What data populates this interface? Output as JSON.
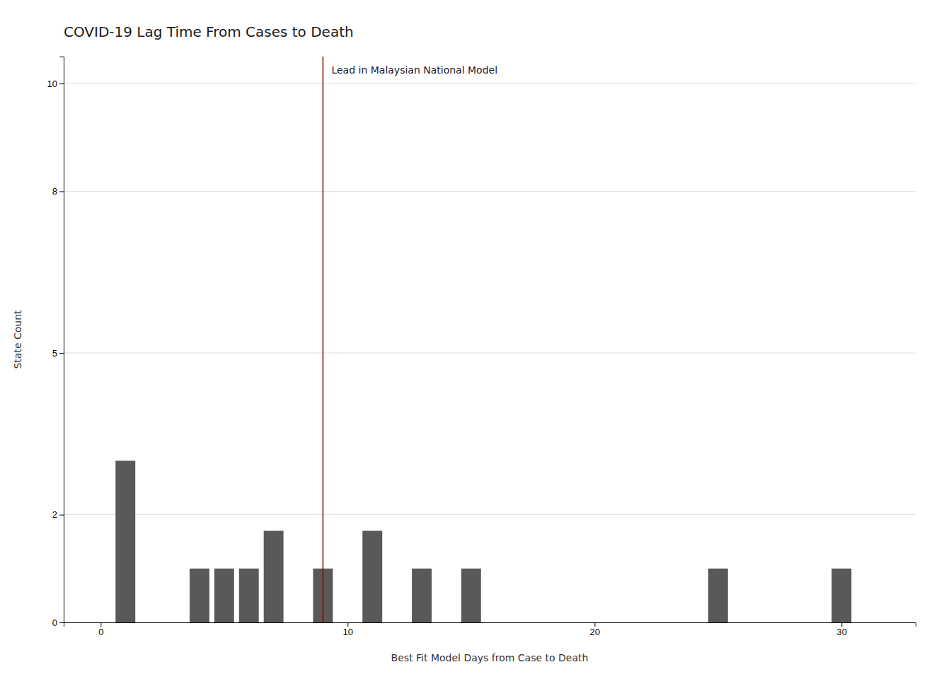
{
  "chart_data": {
    "type": "bar",
    "title": "COVID-19 Lag Time From Cases to Death",
    "x_label": "Best Fit Model Days from Case to Death",
    "y_label": "State Count",
    "x": [
      1,
      4,
      5,
      6,
      7,
      9,
      11,
      13,
      15,
      25,
      30
    ],
    "values": [
      3,
      1,
      1,
      1,
      1.7,
      1,
      1.7,
      1,
      1,
      1,
      1
    ],
    "color": "#595959",
    "reference_line": {
      "x": 9,
      "color": "#8B0000"
    },
    "annotation": "Lead in Malaysian National Model",
    "xlim": [
      -1.5,
      33
    ],
    "ylim": [
      0,
      10.5
    ],
    "xticks": [
      0,
      10,
      20,
      30
    ],
    "yticks": [
      0,
      2,
      5,
      8,
      10
    ],
    "grid": true
  }
}
